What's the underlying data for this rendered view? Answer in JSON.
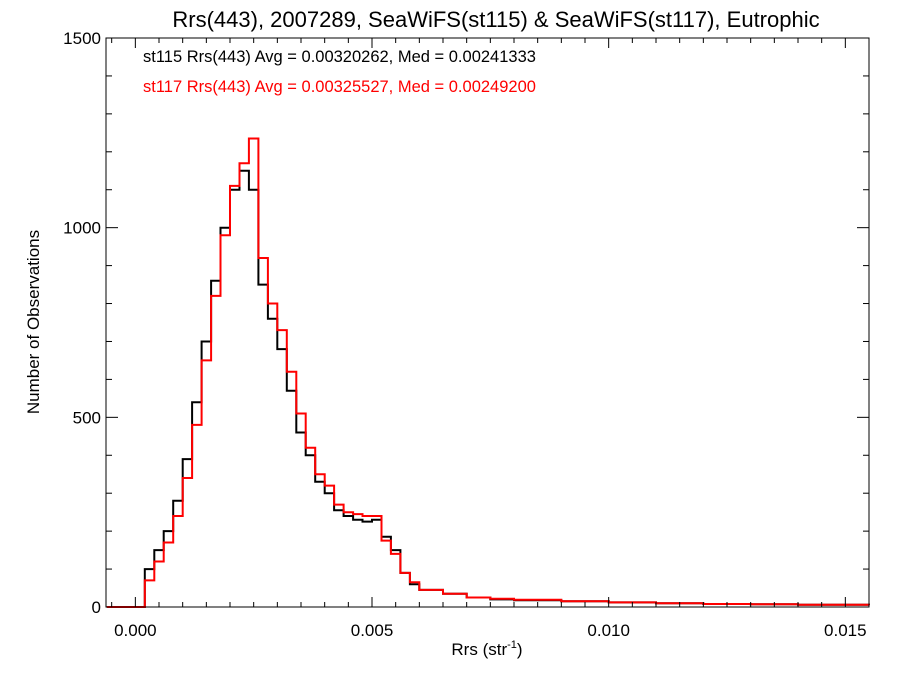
{
  "chart_data": {
    "type": "line",
    "title": "Rrs(443), 2007289, SeaWiFS(st115) & SeaWiFS(st117), Eutrophic",
    "xlabel": "Rrs (str",
    "xlabel_sup": "-1",
    "xlabel_close": ")",
    "ylabel": "Number of Observations",
    "xlim": [
      -0.00062,
      0.0155
    ],
    "ylim": [
      0,
      1500
    ],
    "x_ticks": [
      0.0,
      0.005,
      0.01,
      0.015
    ],
    "x_tick_labels": [
      "0.000",
      "0.005",
      "0.010",
      "0.015"
    ],
    "y_ticks": [
      0,
      500,
      1000,
      1500
    ],
    "y_tick_labels": [
      "0",
      "500",
      "1000",
      "1500"
    ],
    "grid": false,
    "annotations": [
      {
        "text": "st115 Rrs(443) Avg = 0.00320262, Med = 0.00241333",
        "color": "#000000"
      },
      {
        "text": "st117 Rrs(443) Avg = 0.00325527, Med = 0.00249200",
        "color": "#ff0000"
      }
    ],
    "series": [
      {
        "color": "#000000",
        "x": [
          -0.0006,
          0.0,
          0.0002,
          0.0004,
          0.0006,
          0.0008,
          0.001,
          0.0012,
          0.0014,
          0.0016,
          0.0018,
          0.002,
          0.0022,
          0.0024,
          0.0026,
          0.0028,
          0.003,
          0.0032,
          0.0034,
          0.0036,
          0.0038,
          0.004,
          0.0042,
          0.0044,
          0.0046,
          0.0048,
          0.005,
          0.0052,
          0.0054,
          0.0056,
          0.0058,
          0.006,
          0.0065,
          0.007,
          0.0075,
          0.008,
          0.009,
          0.01,
          0.011,
          0.012,
          0.013,
          0.014,
          0.0155
        ],
        "y": [
          0,
          0,
          100,
          150,
          200,
          280,
          390,
          540,
          700,
          860,
          1000,
          1100,
          1150,
          1100,
          850,
          760,
          680,
          570,
          460,
          400,
          330,
          300,
          255,
          240,
          230,
          225,
          230,
          185,
          150,
          90,
          60,
          45,
          35,
          25,
          20,
          18,
          15,
          12,
          10,
          8,
          7,
          6,
          5
        ]
      },
      {
        "color": "#ff0000",
        "x": [
          -0.0006,
          0.0,
          0.0002,
          0.0004,
          0.0006,
          0.0008,
          0.001,
          0.0012,
          0.0014,
          0.0016,
          0.0018,
          0.002,
          0.0022,
          0.0024,
          0.0026,
          0.0028,
          0.003,
          0.0032,
          0.0034,
          0.0036,
          0.0038,
          0.004,
          0.0042,
          0.0044,
          0.0046,
          0.0048,
          0.005,
          0.0052,
          0.0054,
          0.0056,
          0.0058,
          0.006,
          0.0065,
          0.007,
          0.0075,
          0.008,
          0.009,
          0.01,
          0.011,
          0.012,
          0.013,
          0.014,
          0.0155
        ],
        "y": [
          0,
          0,
          70,
          120,
          170,
          240,
          340,
          480,
          650,
          820,
          980,
          1110,
          1170,
          1235,
          920,
          800,
          730,
          620,
          510,
          420,
          350,
          320,
          270,
          250,
          245,
          240,
          240,
          175,
          140,
          90,
          65,
          45,
          35,
          25,
          22,
          19,
          15,
          12,
          10,
          8,
          7,
          6,
          5
        ]
      }
    ]
  }
}
